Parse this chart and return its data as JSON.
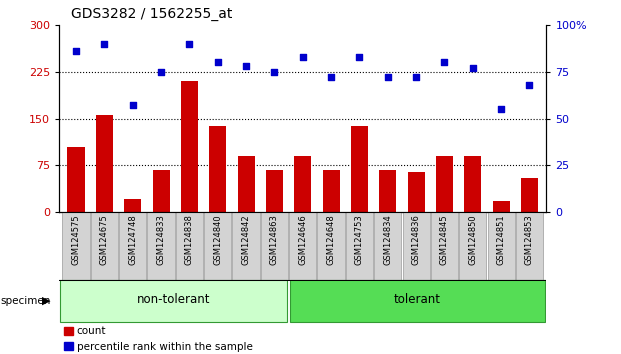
{
  "title": "GDS3282 / 1562255_at",
  "samples": [
    "GSM124575",
    "GSM124675",
    "GSM124748",
    "GSM124833",
    "GSM124838",
    "GSM124840",
    "GSM124842",
    "GSM124863",
    "GSM124646",
    "GSM124648",
    "GSM124753",
    "GSM124834",
    "GSM124836",
    "GSM124845",
    "GSM124850",
    "GSM124851",
    "GSM124853"
  ],
  "counts": [
    105,
    155,
    22,
    68,
    210,
    138,
    90,
    68,
    90,
    68,
    138,
    68,
    65,
    90,
    90,
    18,
    55
  ],
  "percentile": [
    86,
    90,
    57,
    75,
    90,
    80,
    78,
    75,
    83,
    72,
    83,
    72,
    72,
    80,
    77,
    55,
    68
  ],
  "groups": [
    {
      "label": "non-tolerant",
      "start": 0,
      "end": 8,
      "color": "#ccffcc"
    },
    {
      "label": "tolerant",
      "start": 8,
      "end": 17,
      "color": "#55dd55"
    }
  ],
  "bar_color": "#cc0000",
  "dot_color": "#0000cc",
  "left_ylim": [
    0,
    300
  ],
  "left_yticks": [
    0,
    75,
    150,
    225,
    300
  ],
  "right_ylim": [
    0,
    100
  ],
  "right_yticks": [
    0,
    25,
    50,
    75,
    100
  ],
  "grid_lines": [
    75,
    150,
    225
  ],
  "bg_color": "#ffffff",
  "plot_bg": "#ffffff",
  "specimen_label": "specimen",
  "legend_count_label": "count",
  "legend_pct_label": "percentile rank within the sample"
}
